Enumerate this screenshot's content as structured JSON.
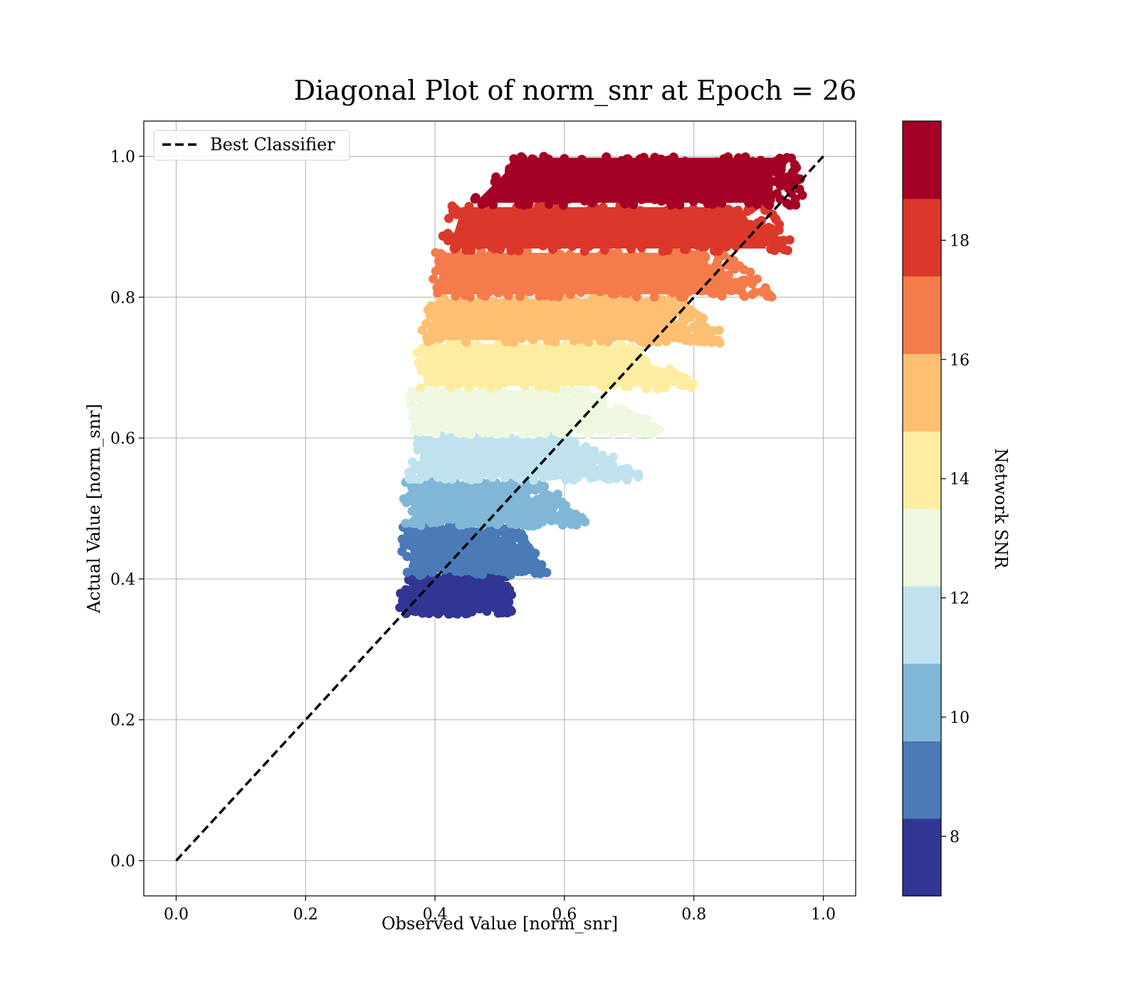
{
  "chart_data": {
    "type": "scatter",
    "title": "Diagonal Plot of norm_snr at Epoch = 26",
    "xlabel": "Observed Value [norm_snr]",
    "ylabel": "Actual Value [norm_snr]",
    "xlim": [
      -0.05,
      1.05
    ],
    "ylim": [
      -0.05,
      1.05
    ],
    "xticks": [
      "0.0",
      "0.2",
      "0.4",
      "0.6",
      "0.8",
      "1.0"
    ],
    "yticks": [
      "0.0",
      "0.2",
      "0.4",
      "0.6",
      "0.8",
      "1.0"
    ],
    "grid": true,
    "legend": {
      "position": "top-left",
      "entries": [
        "Best Classifier"
      ]
    },
    "reference_line": {
      "name": "Best Classifier",
      "style": "dashed",
      "color": "#000000",
      "x": [
        0.0,
        1.0
      ],
      "y": [
        0.0,
        1.0
      ]
    },
    "colorbar": {
      "label": "Network SNR",
      "range": [
        7,
        20
      ],
      "ticks": [
        "8",
        "10",
        "12",
        "14",
        "16",
        "18"
      ],
      "levels": [
        7,
        8.3,
        9.6,
        10.9,
        12.2,
        13.5,
        14.8,
        16.1,
        17.4,
        18.7,
        20
      ],
      "colors": [
        "#313695",
        "#4a7bb7",
        "#80b6d6",
        "#bfe2ee",
        "#eef8e0",
        "#feeda1",
        "#fdbf71",
        "#f57b4b",
        "#db382b",
        "#a50026"
      ]
    },
    "bands": [
      {
        "snr": 7.65,
        "y": [
          0.35,
          0.405
        ],
        "x_left": [
          0.345,
          0.36
        ],
        "x_right": [
          0.52,
          0.51
        ],
        "color": "#313695"
      },
      {
        "snr": 8.95,
        "y": [
          0.405,
          0.475
        ],
        "x_left": [
          0.355,
          0.35
        ],
        "x_right": [
          0.58,
          0.52
        ],
        "color": "#4a7bb7"
      },
      {
        "snr": 10.25,
        "y": [
          0.475,
          0.54
        ],
        "x_left": [
          0.355,
          0.355
        ],
        "x_right": [
          0.64,
          0.56
        ],
        "color": "#80b6d6"
      },
      {
        "snr": 11.55,
        "y": [
          0.54,
          0.605
        ],
        "x_left": [
          0.36,
          0.37
        ],
        "x_right": [
          0.74,
          0.6
        ],
        "color": "#bfe2ee"
      },
      {
        "snr": 12.85,
        "y": [
          0.605,
          0.67
        ],
        "x_left": [
          0.365,
          0.36
        ],
        "x_right": [
          0.77,
          0.63
        ],
        "color": "#eef8e0"
      },
      {
        "snr": 14.15,
        "y": [
          0.67,
          0.735
        ],
        "x_left": [
          0.37,
          0.37
        ],
        "x_right": [
          0.81,
          0.7
        ],
        "color": "#feeda1"
      },
      {
        "snr": 15.45,
        "y": [
          0.735,
          0.8
        ],
        "x_left": [
          0.38,
          0.39
        ],
        "x_right": [
          0.86,
          0.77
        ],
        "color": "#fdbf71"
      },
      {
        "snr": 16.75,
        "y": [
          0.8,
          0.865
        ],
        "x_left": [
          0.39,
          0.4
        ],
        "x_right": [
          0.93,
          0.85
        ],
        "color": "#f57b4b"
      },
      {
        "snr": 18.05,
        "y": [
          0.865,
          0.93
        ],
        "x_left": [
          0.41,
          0.43
        ],
        "x_right": [
          0.96,
          0.92
        ],
        "color": "#db382b"
      },
      {
        "snr": 19.35,
        "y": [
          0.93,
          1.0
        ],
        "x_left": [
          0.45,
          0.52
        ],
        "x_right": [
          0.97,
          0.97
        ],
        "color": "#a50026"
      }
    ]
  }
}
